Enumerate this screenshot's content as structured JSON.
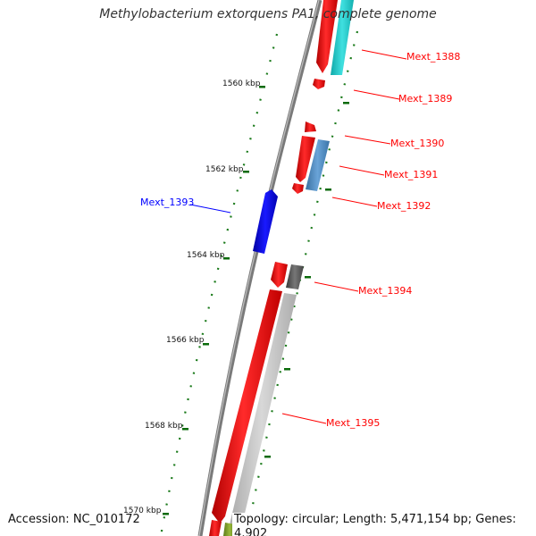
{
  "title": "Methylobacterium extorquens PA1, complete genome",
  "footer": {
    "accession": "Accession: NC_010172",
    "summary": "Topology: circular; Length: 5,471,154 bp; Genes: 4,902"
  },
  "kbp_ticks": [
    {
      "label": "1560 kbp"
    },
    {
      "label": "1562 kbp"
    },
    {
      "label": "1564 kbp"
    },
    {
      "label": "1566 kbp"
    },
    {
      "label": "1568 kbp"
    },
    {
      "label": "1570 kbp"
    }
  ],
  "genes": [
    {
      "label": "Mext_1388",
      "strand": "forward",
      "color": "#ff0000"
    },
    {
      "label": "Mext_1389",
      "strand": "forward",
      "color": "#ff0000"
    },
    {
      "label": "Mext_1390",
      "strand": "forward",
      "color": "#ff0000"
    },
    {
      "label": "Mext_1391",
      "strand": "forward",
      "color": "#ff0000"
    },
    {
      "label": "Mext_1392",
      "strand": "forward",
      "color": "#ff0000"
    },
    {
      "label": "Mext_1393",
      "strand": "reverse",
      "color": "#0000ff"
    },
    {
      "label": "Mext_1394",
      "strand": "forward",
      "color": "#ff0000"
    },
    {
      "label": "Mext_1395",
      "strand": "forward",
      "color": "#ff0000"
    }
  ],
  "colors": {
    "backbone": "#888888",
    "forward_cds": "#ff0000",
    "reverse_cds": "#0000ff",
    "cog_cyan": "#22cccc",
    "cog_steelblue": "#4d8fc4",
    "cog_darkgray": "#555555",
    "cog_lightgray": "#bdbdbd",
    "cog_olive": "#7a9a2a",
    "gc_skew": "#006600"
  }
}
